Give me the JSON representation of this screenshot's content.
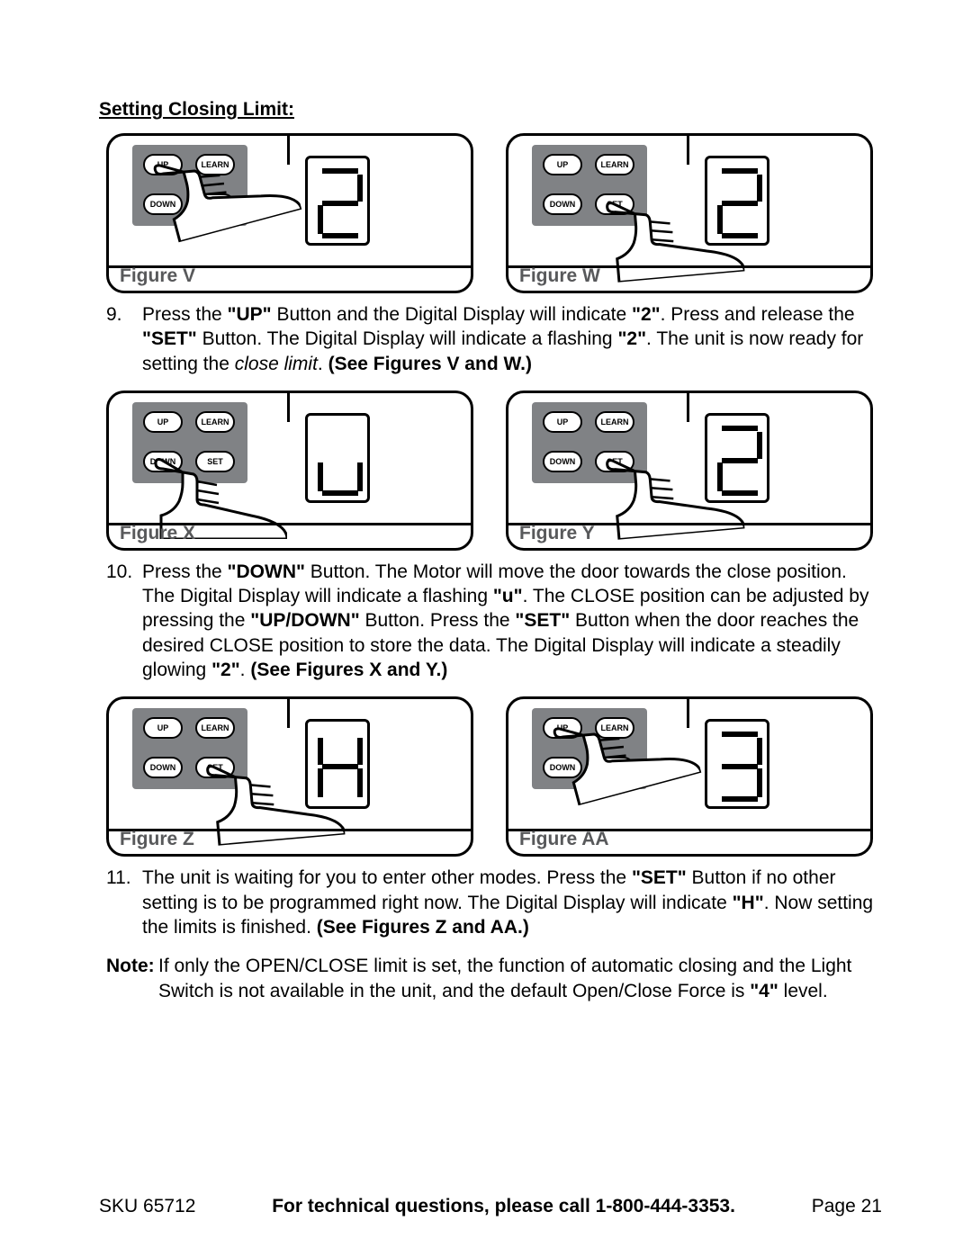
{
  "colors": {
    "text": "#000000",
    "panel": "#808285",
    "caption": "#58595b",
    "border": "#000000",
    "background": "#ffffff"
  },
  "section_title": "Setting Closing Limit:",
  "buttons": {
    "up": "UP",
    "learn": "LEARN",
    "down": "DOWN",
    "set": "SET"
  },
  "figures": {
    "v": {
      "caption": "Figure V",
      "digit": "2",
      "hand_target": "up"
    },
    "w": {
      "caption": "Figure W",
      "digit": "2",
      "hand_target": "set"
    },
    "x": {
      "caption": "Figure X",
      "digit": "u",
      "hand_target": "down"
    },
    "y": {
      "caption": "Figure Y",
      "digit": "2",
      "hand_target": "set"
    },
    "z": {
      "caption": "Figure Z",
      "digit": "H",
      "hand_target": "set"
    },
    "aa": {
      "caption": "Figure AA",
      "digit": "3",
      "hand_target": "up"
    }
  },
  "steps": {
    "s9": {
      "num": "9.",
      "parts": [
        {
          "t": "Press the "
        },
        {
          "t": "\"UP\"",
          "b": true
        },
        {
          "t": " Button and the Digital Display will indicate "
        },
        {
          "t": "\"2\"",
          "b": true
        },
        {
          "t": ".  Press and release the "
        },
        {
          "t": "\"SET\"",
          "b": true
        },
        {
          "t": " Button.  The Digital Display will indicate a flashing "
        },
        {
          "t": "\"2\"",
          "b": true
        },
        {
          "t": ".  The unit is now ready for setting the "
        },
        {
          "t": "close limit",
          "i": true
        },
        {
          "t": ".  "
        },
        {
          "t": "See Figures V and W.)",
          "b": true,
          "prefix_open_paren": false
        }
      ],
      "text_plain": "Press the \"UP\" Button and the Digital Display will indicate \"2\".  Press and release the \"SET\" Button.  The Digital Display will indicate a flashing \"2\".  The unit is now ready for setting the close limit.  See Figures V and W.)"
    },
    "s10": {
      "num": "10.",
      "parts": [
        {
          "t": "Press the "
        },
        {
          "t": "\"DOWN\"",
          "b": true
        },
        {
          "t": " Button.  The Motor will move the door towards the close position.  The Digital Display will indicate a flashing "
        },
        {
          "t": "\"u\"",
          "b": true
        },
        {
          "t": ".  The CLOSE position can be adjusted by pressing  the "
        },
        {
          "t": "\"UP/DOWN\"",
          "b": true
        },
        {
          "t": " Button.  Press the "
        },
        {
          "t": "\"SET\"",
          "b": true
        },
        {
          "t": " Button when the door reaches the desired CLOSE position to store the data.  The Digital Display will indicate a steadily glowing "
        },
        {
          "t": "\"2\"",
          "b": true
        },
        {
          "t": ".  "
        },
        {
          "t": "See Figures X and Y.)",
          "b": true
        }
      ]
    },
    "s11": {
      "num": "11.",
      "parts": [
        {
          "t": "The unit is waiting for you to enter other modes.  Press the "
        },
        {
          "t": "\"SET\"",
          "b": true
        },
        {
          "t": " Button if no other setting is to be programmed right now.  The Digital Display will indicate "
        },
        {
          "t": "\"H\"",
          "b": true
        },
        {
          "t": ". Now setting the limits is finished.  "
        },
        {
          "t": "See Figures Z and AA.)",
          "b": true
        }
      ]
    },
    "note": {
      "num": "Note:",
      "num_bold": true,
      "parts": [
        {
          "t": "If only the OPEN/CLOSE limit is set, the function of automatic closing and the Light Switch is not available in the unit, and the default Open/Close Force is "
        },
        {
          "t": "\"4\"",
          "b": true
        },
        {
          "t": " level."
        }
      ]
    }
  },
  "footer": {
    "left": "SKU 65712",
    "mid": "For technical questions, please call 1-800-444-3353.",
    "right": "Page 21"
  },
  "seven_segment": {
    "segments_on": {
      "2": [
        "a",
        "b",
        "g",
        "e",
        "d"
      ],
      "3": [
        "a",
        "b",
        "g",
        "c",
        "d"
      ],
      "u": [
        "e",
        "d",
        "c"
      ],
      "H": [
        "f",
        "e",
        "g",
        "b",
        "c"
      ]
    },
    "stroke_width": 6
  }
}
